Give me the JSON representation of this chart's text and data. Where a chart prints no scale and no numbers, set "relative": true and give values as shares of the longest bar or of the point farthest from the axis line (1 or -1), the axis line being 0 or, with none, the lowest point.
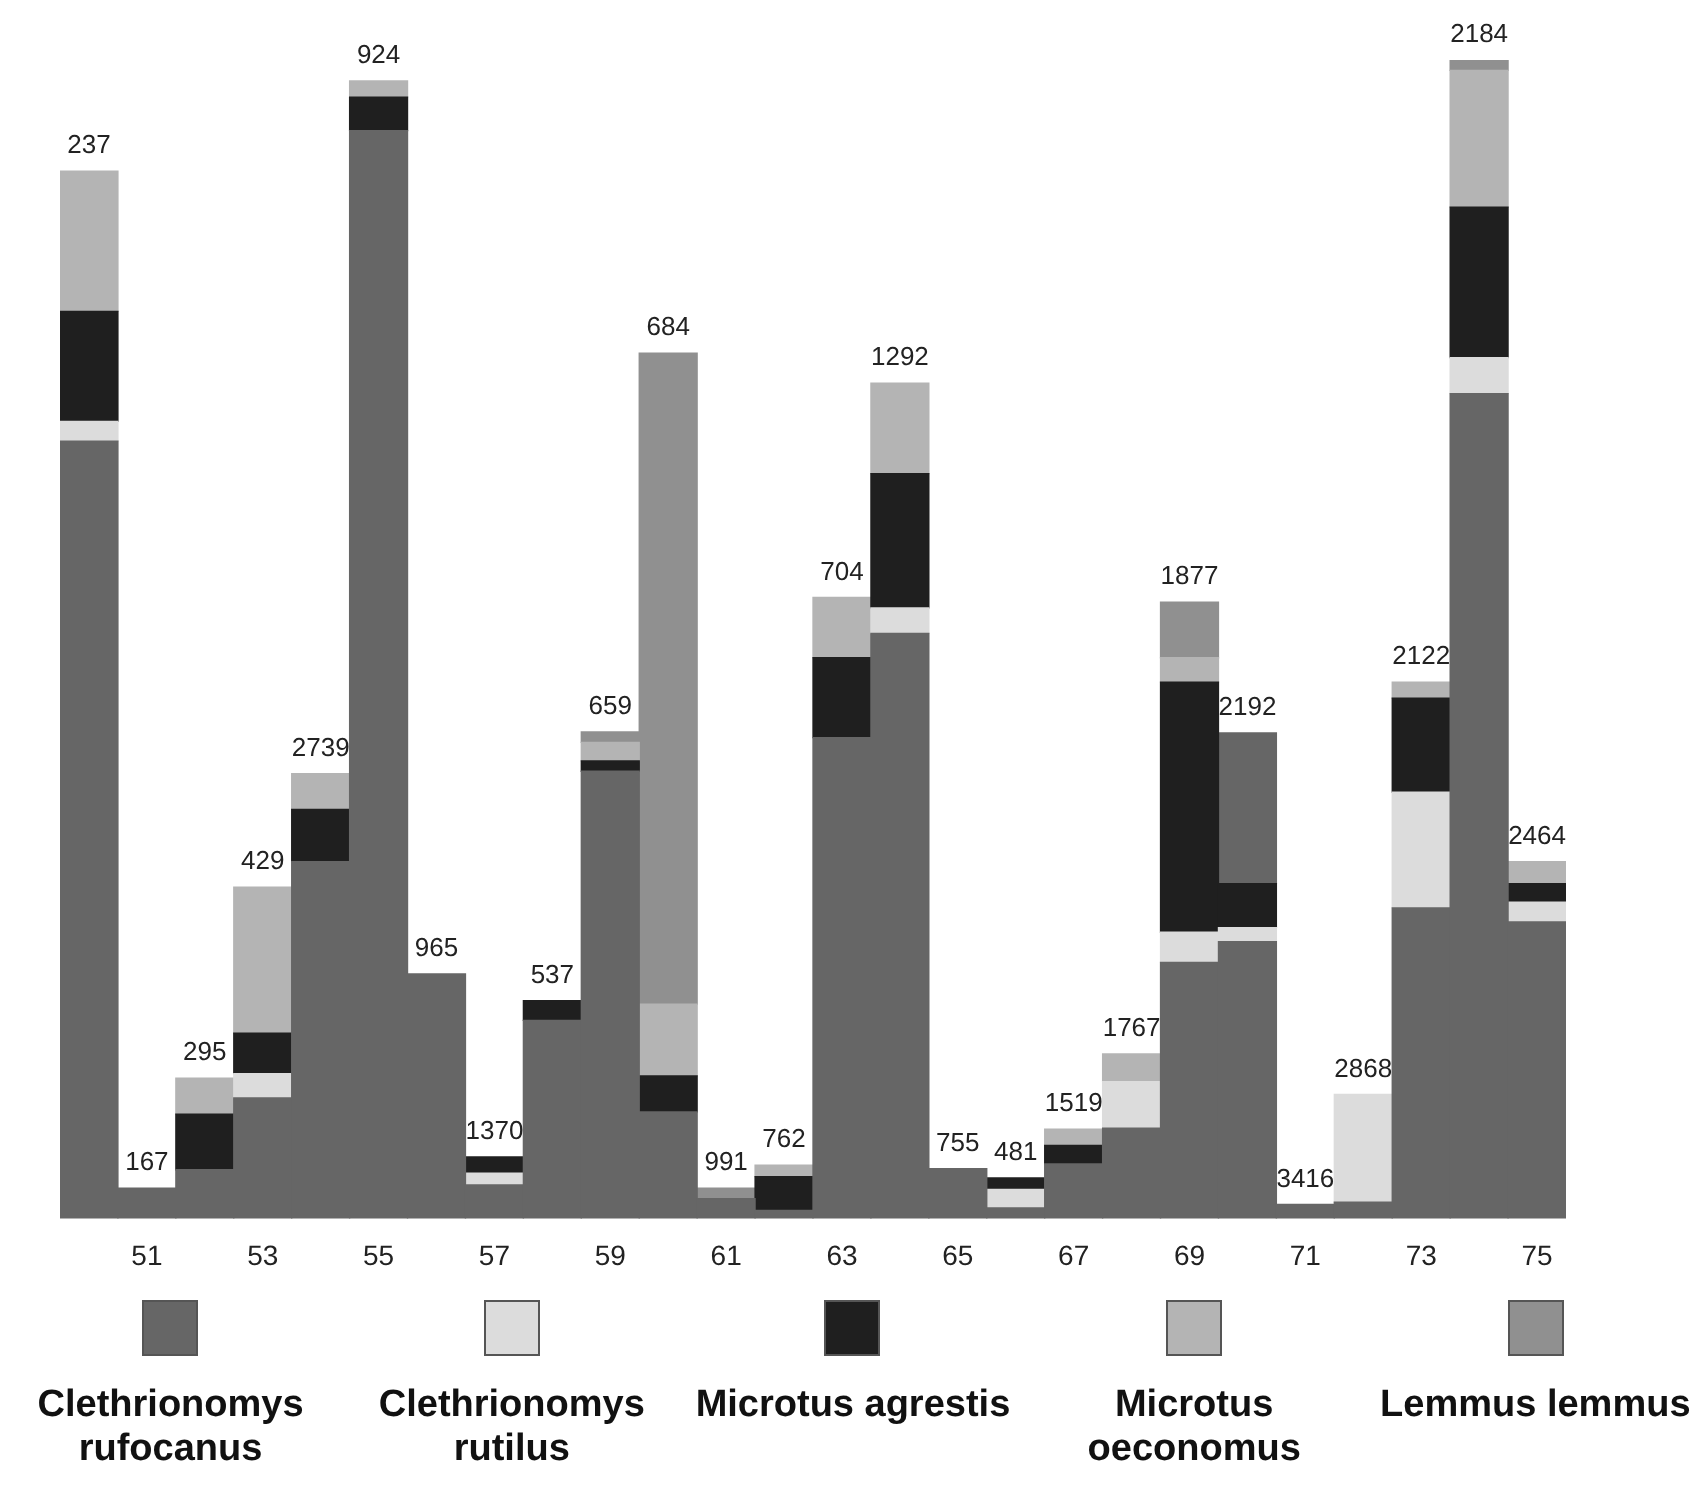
{
  "chart_data": {
    "type": "bar",
    "stacked": true,
    "relative": true,
    "legend": "bottom",
    "categories": [
      null,
      "51",
      null,
      "53",
      null,
      "55",
      null,
      "57",
      null,
      "59",
      null,
      "61",
      null,
      "63",
      null,
      "65",
      null,
      "67",
      null,
      "69",
      null,
      "71",
      null,
      "73",
      null,
      "75"
    ],
    "series": [
      {
        "name": "Clethrionomys rufocanus",
        "color": "#666666",
        "values": [
          0.671,
          0.026,
          0.042,
          0.104,
          0.308,
          0.939,
          0.211,
          0.029,
          0.171,
          0.386,
          0.092,
          0.017,
          0.007,
          0.415,
          0.505,
          0.043,
          0.009,
          0.047,
          0.078,
          0.221,
          0.239,
          0.012,
          0.014,
          0.268,
          0.712,
          0.256
        ]
      },
      {
        "name": "Clethrionomys rutilus",
        "color": "#dcdcdc",
        "values": [
          0.017,
          null,
          null,
          0.021,
          null,
          null,
          null,
          0.01,
          null,
          null,
          null,
          null,
          null,
          null,
          0.022,
          null,
          0.016,
          null,
          0.04,
          0.026,
          0.012,
          null,
          0.093,
          0.1,
          0.031,
          0.017
        ]
      },
      {
        "name": "Microtus agrestis",
        "color": "#1f1f1f",
        "values": [
          0.095,
          null,
          0.048,
          0.035,
          0.045,
          0.029,
          null,
          0.014,
          0.017,
          0.009,
          0.031,
          null,
          0.029,
          0.069,
          0.116,
          null,
          0.01,
          0.016,
          null,
          0.216,
          0.038,
          null,
          null,
          0.081,
          0.13,
          0.016
        ]
      },
      {
        "color": "#666666",
        "values": [
          null,
          null,
          null,
          null,
          null,
          null,
          null,
          null,
          null,
          null,
          null,
          null,
          null,
          null,
          null,
          null,
          null,
          null,
          null,
          null,
          0.13,
          null,
          null,
          null,
          null,
          null
        ]
      },
      {
        "name": "Microtus oeconomus",
        "color": "#b4b4b4",
        "values": [
          0.121,
          null,
          0.031,
          0.126,
          0.031,
          0.014,
          null,
          null,
          null,
          0.016,
          0.062,
          null,
          0.01,
          0.052,
          0.078,
          null,
          null,
          0.014,
          0.024,
          0.021,
          null,
          null,
          null,
          0.014,
          0.118,
          0.019
        ]
      },
      {
        "name": "Lemmus lemmus",
        "color": "#909090",
        "values": [
          null,
          null,
          null,
          null,
          null,
          null,
          null,
          null,
          null,
          0.009,
          0.562,
          0.009,
          null,
          null,
          null,
          null,
          null,
          null,
          null,
          0.048,
          null,
          null,
          null,
          null,
          0.009,
          null
        ]
      }
    ],
    "annotations": [
      "237",
      "167",
      "295",
      "429",
      "2739",
      "924",
      "965",
      "1370",
      "537",
      "659",
      "684",
      "991",
      "762",
      "704",
      "1292",
      "755",
      "481",
      "1519",
      "1767",
      "1877",
      "2192",
      "3416",
      "2868",
      "2122",
      "2184",
      "2464"
    ]
  }
}
